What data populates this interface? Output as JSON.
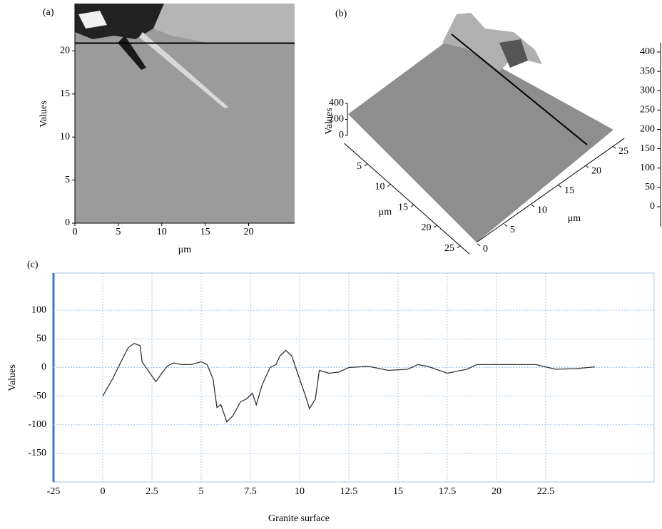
{
  "chart_data": [
    {
      "type": "image",
      "panel_label": "(a)",
      "xlabel": "μm",
      "ylabel": "Values",
      "xlim": [
        0,
        25.3
      ],
      "ylim": [
        0,
        25.5
      ],
      "xticks": [
        0,
        5,
        10,
        15,
        20
      ],
      "yticks": [
        0,
        5,
        10,
        15,
        20
      ],
      "profile_y": 20.9
    },
    {
      "type": "surface3d",
      "panel_label": "(b)",
      "zlabel": "Values",
      "zlim": [
        0,
        400
      ],
      "zticks": [
        0,
        200,
        400
      ],
      "xlabel": "μm",
      "xticks": [
        5,
        10,
        15,
        20,
        25
      ],
      "ylabel": "μm",
      "yticks": [
        0,
        5,
        10,
        15,
        20,
        25
      ],
      "colorbar_lim": [
        0,
        400
      ],
      "colorbar_ticks": [
        0,
        50,
        100,
        150,
        200,
        250,
        300,
        350,
        400
      ]
    },
    {
      "type": "line",
      "panel_label": "(c)",
      "xlabel": "Granite surface",
      "ylabel": "Values",
      "xlim": [
        -25,
        28
      ],
      "xticks": [
        -25,
        0,
        2.5,
        5,
        7.5,
        10,
        12.5,
        15,
        17.5,
        20,
        22.5
      ],
      "ylim": [
        -200,
        165
      ],
      "yticks": [
        100,
        50,
        0,
        -50,
        -100,
        -150
      ],
      "grid": true,
      "color": "#333333",
      "x": [
        0,
        0.5,
        1.0,
        1.3,
        1.6,
        1.9,
        2.0,
        2.3,
        2.7,
        3.0,
        3.3,
        3.6,
        4.0,
        4.5,
        5.0,
        5.3,
        5.6,
        5.8,
        6.0,
        6.3,
        6.6,
        7.0,
        7.3,
        7.6,
        7.8,
        8.1,
        8.5,
        8.8,
        9.0,
        9.3,
        9.6,
        9.9,
        10.3,
        10.5,
        10.8,
        11.0,
        11.5,
        12.0,
        12.5,
        13.5,
        14.5,
        15.5,
        16.0,
        16.5,
        17.5,
        18.5,
        19.0,
        20.0,
        21.0,
        22.0,
        23.0,
        24.0,
        25.0
      ],
      "values": [
        -50,
        -20,
        15,
        35,
        42,
        38,
        10,
        -5,
        -25,
        -10,
        3,
        8,
        5,
        5,
        10,
        5,
        -20,
        -70,
        -65,
        -95,
        -85,
        -60,
        -55,
        -45,
        -65,
        -30,
        0,
        5,
        20,
        30,
        20,
        -10,
        -50,
        -72,
        -55,
        -5,
        -10,
        -8,
        0,
        2,
        -5,
        -3,
        5,
        2,
        -10,
        -3,
        5,
        5,
        5,
        5,
        -3,
        -2,
        1
      ]
    }
  ]
}
